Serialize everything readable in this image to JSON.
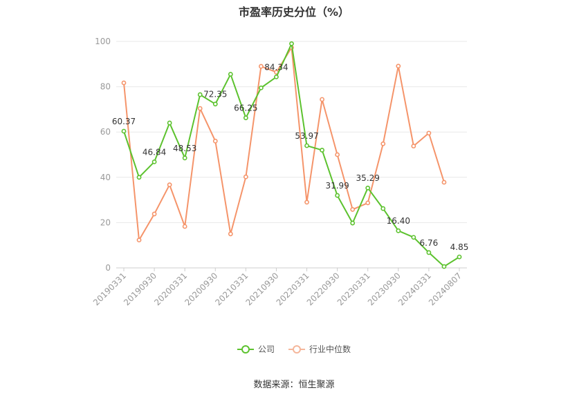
{
  "chart_data": {
    "type": "line",
    "title": "市盈率历史分位（%）",
    "ylim": [
      0,
      100
    ],
    "yticks": [
      0,
      20,
      40,
      60,
      80,
      100
    ],
    "grid": true,
    "legend_position": "bottom",
    "x": [
      "20190331",
      "20190630",
      "20190930",
      "20191231",
      "20200331",
      "20200630",
      "20200930",
      "20201231",
      "20210331",
      "20210630",
      "20210930",
      "20211231",
      "20220331",
      "20220630",
      "20220930",
      "20221231",
      "20230331",
      "20230630",
      "20230930",
      "20231231",
      "20240331",
      "20240630",
      "20240807"
    ],
    "xtick_labels": [
      "20190331",
      "20190930",
      "20200331",
      "20200930",
      "20210331",
      "20210930",
      "20220331",
      "20220930",
      "20230331",
      "20230930",
      "20240331",
      "20240807"
    ],
    "series": [
      {
        "name": "公司",
        "color": "#5cc22e",
        "values": [
          60.37,
          40,
          46.84,
          64,
          48.53,
          76.5,
          72.35,
          85.5,
          66.25,
          79.5,
          84.34,
          99,
          53.97,
          52,
          31.99,
          19.8,
          35.29,
          26.2,
          16.4,
          13.5,
          6.76,
          0.6,
          4.85
        ],
        "data_labels": {
          "0": "60.37",
          "2": "46.84",
          "4": "48.53",
          "6": "72.35",
          "8": "66.25",
          "10": "84.34",
          "12": "53.97",
          "14": "31.99",
          "16": "35.29",
          "18": "16.40",
          "20": "6.76",
          "22": "4.85"
        }
      },
      {
        "name": "行业中位数",
        "color": "#f5946a",
        "values": [
          81.7,
          12.3,
          23.8,
          36.7,
          18.3,
          70.4,
          56,
          15,
          40.2,
          89,
          86.4,
          97.3,
          29,
          74.4,
          50,
          25.8,
          28.7,
          54.8,
          89.1,
          53.8,
          59.5,
          37.8,
          null
        ]
      }
    ]
  },
  "source_text": "数据来源：恒生聚源"
}
